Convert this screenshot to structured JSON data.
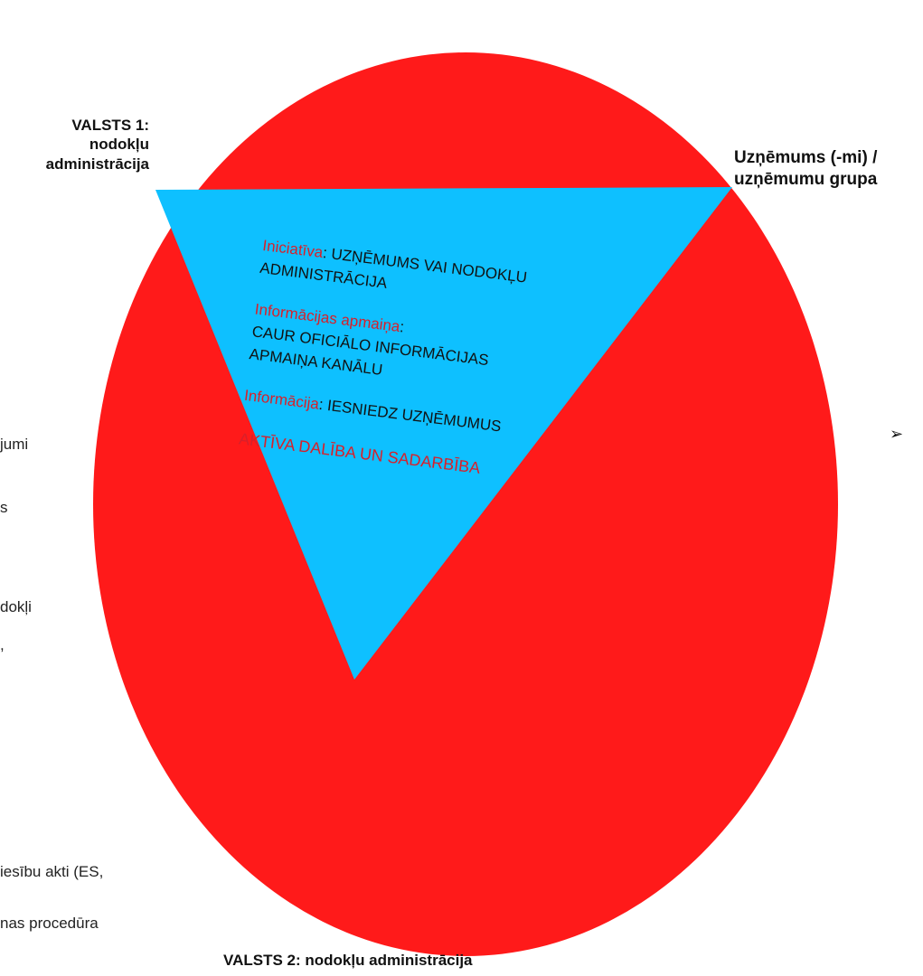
{
  "colors": {
    "circle": "#ff1a1a",
    "triangle": "#0ec0ff",
    "accent_text": "#d8202a",
    "text": "#111111"
  },
  "vertices": {
    "state1": "VALSTS 1:\nnodokļu\nadministrācija",
    "company": "Uzņēmums (-mi) /\nuzņēmumu grupa",
    "state2": "VALSTS 2: nodokļu administrācija"
  },
  "triangle": {
    "initiative_key": "Iniciatīva",
    "initiative_value": ": UZŅĒMUMS VAI NODOKĻU ADMINISTRĀCIJA",
    "exchange_key": "Informācijas apmaiņa",
    "exchange_sep": ":",
    "exchange_value": "CAUR OFICIĀLO INFORMĀCIJAS APMAIŅA KANĀLU",
    "information_key": "Informācija",
    "information_value": ": IESNIEDZ UZŅĒMUMUS",
    "active": "AKTĪVA DALĪBA UN SADARBĪBA"
  },
  "side_fragments": [
    "jumi",
    "s",
    "dokļi",
    ",",
    "iesību akti (ES,",
    "nas procedūra"
  ],
  "bullet_arrow": "➢"
}
